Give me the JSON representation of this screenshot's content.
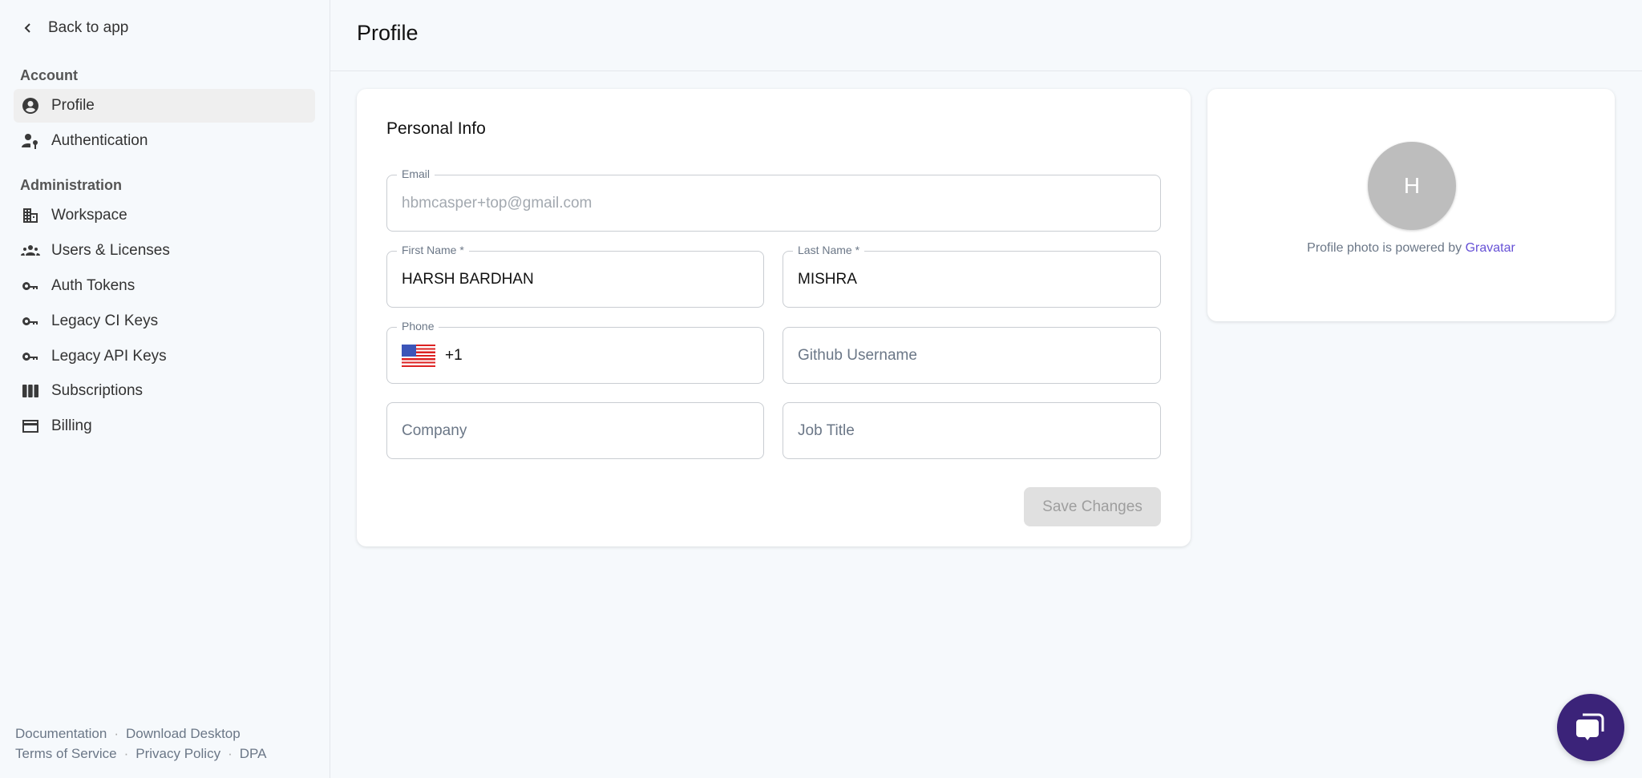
{
  "sidebar": {
    "back_label": "Back to app",
    "sections": [
      {
        "title": "Account"
      },
      {
        "title": "Administration"
      }
    ],
    "items": [
      {
        "label": "Profile",
        "icon": "account-circle-icon",
        "active": true
      },
      {
        "label": "Authentication",
        "icon": "user-key-icon"
      },
      {
        "label": "Workspace",
        "icon": "building-icon"
      },
      {
        "label": "Users & Licenses",
        "icon": "group-icon"
      },
      {
        "label": "Auth Tokens",
        "icon": "key-icon"
      },
      {
        "label": "Legacy CI Keys",
        "icon": "key-icon"
      },
      {
        "label": "Legacy API Keys",
        "icon": "key-icon"
      },
      {
        "label": "Subscriptions",
        "icon": "columns-icon"
      },
      {
        "label": "Billing",
        "icon": "credit-card-icon"
      }
    ],
    "footer": {
      "links1": [
        "Documentation",
        "Download Desktop"
      ],
      "links2": [
        "Terms of Service",
        "Privacy Policy",
        "DPA"
      ]
    }
  },
  "header": {
    "title": "Profile"
  },
  "personal_info": {
    "title": "Personal Info",
    "email": {
      "label": "Email",
      "value": "hbmcasper+top@gmail.com"
    },
    "first_name": {
      "label": "First Name *",
      "value": "HARSH BARDHAN"
    },
    "last_name": {
      "label": "Last Name *",
      "value": "MISHRA"
    },
    "phone": {
      "label": "Phone",
      "value": "+1",
      "country": "US"
    },
    "github": {
      "placeholder": "Github Username"
    },
    "company": {
      "placeholder": "Company"
    },
    "job_title": {
      "placeholder": "Job Title"
    },
    "save_label": "Save Changes"
  },
  "photo": {
    "initial": "H",
    "caption": "Profile photo is powered by",
    "link": "Gravatar"
  },
  "colors": {
    "accent": "#6651d6",
    "chat": "#3b2379",
    "avatar": "#bdbdbd"
  }
}
